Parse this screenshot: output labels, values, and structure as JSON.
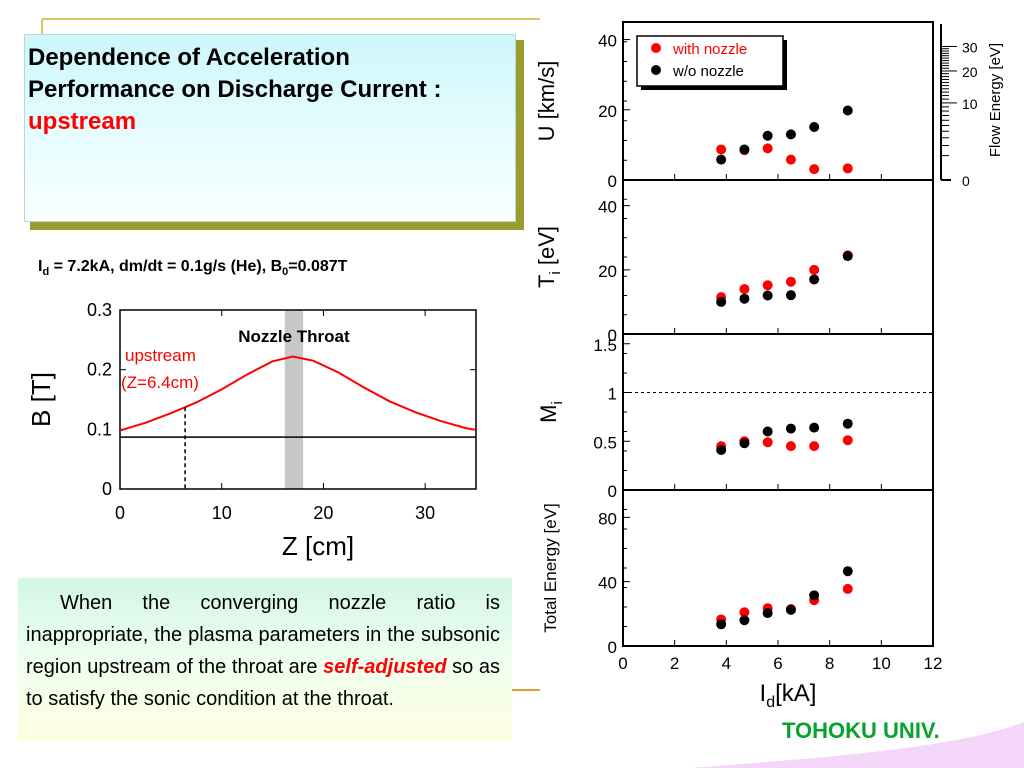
{
  "slide": {
    "title_part1": "Dependence of Acceleration Performance on Discharge Current : ",
    "title_part2": "upstream",
    "params": {
      "I": "I",
      "d": "d",
      "mid": " = 7.2kA, dm/dt = 0.1g/s (He), B",
      "zero": "0",
      "end": "=0.087T"
    },
    "description": {
      "p1": "When the converging nozzle ratio is inappropriate, the plasma parameters in the subsonic region upstream of the throat are ",
      "emph": "self-adjusted",
      "p2": " so as to satisfy the sonic condition at the throat."
    },
    "footer": "TOHOKU UNIV.",
    "colors": {
      "accent_red": "#ff0000",
      "footer_green": "#08a32e",
      "title_shadow": "#9c9c2e"
    }
  },
  "chart_data": [
    {
      "type": "line",
      "title": "",
      "xlabel": "Z [cm]",
      "ylabel": "B [T]",
      "xlim": [
        0,
        35
      ],
      "ylim": [
        0,
        0.3
      ],
      "xticks": [
        "0",
        "10",
        "20",
        "30"
      ],
      "yticks": [
        "0",
        "0.1",
        "0.2",
        "0.3"
      ],
      "annotations": {
        "throat": "Nozzle Throat",
        "upstream": "upstream",
        "upstream_pos": "(Z=6.4cm)"
      },
      "throat_range": [
        16.2,
        18.0
      ],
      "upstream_z": 6.4,
      "series": [
        {
          "color": "#ff0000",
          "x": [
            0,
            2.5,
            5,
            7.5,
            10,
            12.5,
            15,
            17,
            19,
            21.5,
            24,
            26.5,
            29,
            31.5,
            34,
            35
          ],
          "y": [
            0.098,
            0.111,
            0.127,
            0.145,
            0.167,
            0.192,
            0.214,
            0.222,
            0.215,
            0.195,
            0.17,
            0.147,
            0.129,
            0.114,
            0.102,
            0.099
          ]
        },
        {
          "color": "#000000",
          "x": [
            0,
            35
          ],
          "y": [
            0.087,
            0.087
          ]
        }
      ]
    },
    {
      "type": "scatter",
      "xlabel": "I",
      "xlabel_sub": "d",
      "xlabel_unit": "[kA]",
      "xlim": [
        0,
        12
      ],
      "xticks": [
        "0",
        "2",
        "4",
        "6",
        "8",
        "10",
        "12"
      ],
      "legend": {
        "items": [
          "with nozzle",
          "w/o nozzle"
        ],
        "placement": "top-left"
      },
      "panels": [
        {
          "ylabel": "U [km/s]",
          "ylim": [
            0,
            45
          ],
          "yticks": [
            "0",
            "20",
            "40"
          ],
          "right_ylabel": "Flow Energy [eV]",
          "right_ticks": [
            "0",
            "10",
            "20",
            "30"
          ],
          "series": [
            {
              "name": "with nozzle",
              "color": "#ff0000",
              "x": [
                3.8,
                4.7,
                5.6,
                6.5,
                7.4,
                8.7
              ],
              "y": [
                8.7,
                8.5,
                9.0,
                5.8,
                3.1,
                3.3
              ]
            },
            {
              "name": "w/o nozzle",
              "color": "#000000",
              "x": [
                3.8,
                4.7,
                5.6,
                6.5,
                7.4,
                8.7
              ],
              "y": [
                5.8,
                8.7,
                12.6,
                13.0,
                15.1,
                19.8
              ]
            }
          ]
        },
        {
          "ylabel": "T",
          "ylabel_sub": "i",
          "ylabel_unit": " [eV]",
          "ylim": [
            0,
            48
          ],
          "yticks": [
            "0",
            "20",
            "40"
          ],
          "series": [
            {
              "name": "with nozzle",
              "color": "#ff0000",
              "x": [
                3.8,
                4.7,
                5.6,
                6.5,
                7.4,
                8.7
              ],
              "y": [
                11.5,
                14.0,
                15.2,
                16.3,
                20.0,
                24.5
              ]
            },
            {
              "name": "w/o nozzle",
              "color": "#000000",
              "x": [
                3.8,
                4.7,
                5.6,
                6.5,
                7.4,
                8.7
              ],
              "y": [
                10.0,
                11.0,
                12.0,
                12.1,
                17.0,
                24.3
              ]
            }
          ]
        },
        {
          "ylabel": "M",
          "ylabel_sub": "i",
          "ylim": [
            0,
            1.6
          ],
          "yticks": [
            "0",
            "0.5",
            "1",
            "1.5"
          ],
          "reference_line": 1,
          "series": [
            {
              "name": "with nozzle",
              "color": "#ff0000",
              "x": [
                3.8,
                4.7,
                5.6,
                6.5,
                7.4,
                8.7
              ],
              "y": [
                0.45,
                0.5,
                0.49,
                0.45,
                0.45,
                0.51
              ]
            },
            {
              "name": "w/o nozzle",
              "color": "#000000",
              "x": [
                3.8,
                4.7,
                5.6,
                6.5,
                7.4,
                8.7
              ],
              "y": [
                0.41,
                0.48,
                0.6,
                0.63,
                0.64,
                0.68
              ]
            }
          ]
        },
        {
          "ylabel": "Total Energy [eV]",
          "ylim": [
            0,
            97
          ],
          "yticks": [
            "0",
            "40",
            "80"
          ],
          "series": [
            {
              "name": "with nozzle",
              "color": "#ff0000",
              "x": [
                3.8,
                4.7,
                5.6,
                6.5,
                7.4,
                8.7
              ],
              "y": [
                16.5,
                21.0,
                23.5,
                23.0,
                28.5,
                35.5
              ]
            },
            {
              "name": "w/o nozzle",
              "color": "#000000",
              "x": [
                3.8,
                4.7,
                5.6,
                6.5,
                7.4,
                8.7
              ],
              "y": [
                13.5,
                16.0,
                20.5,
                22.5,
                31.5,
                46.5
              ]
            }
          ]
        }
      ]
    }
  ]
}
